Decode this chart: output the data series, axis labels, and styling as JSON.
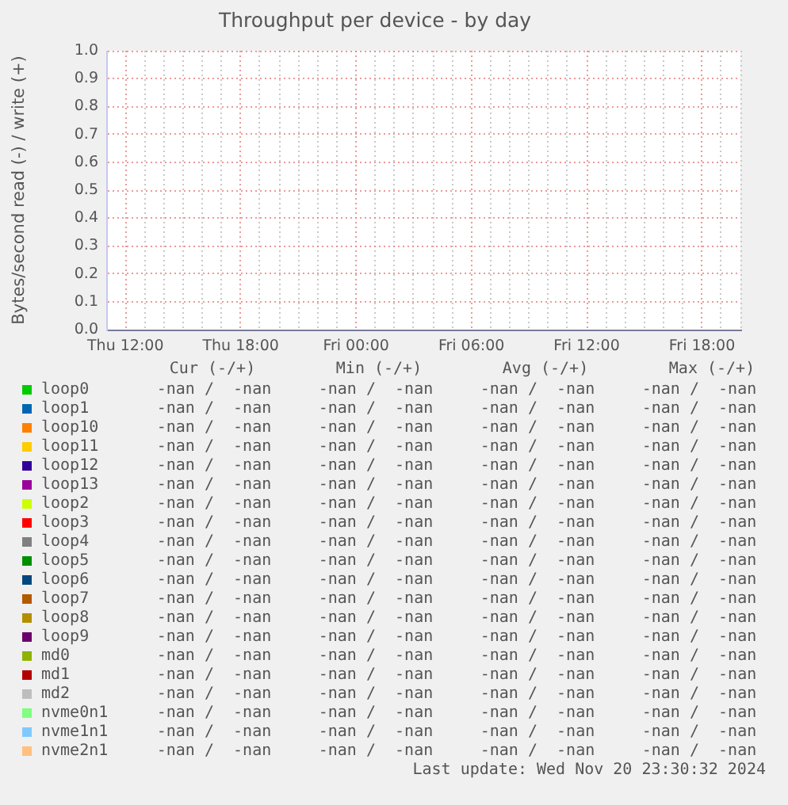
{
  "chart_data": {
    "type": "line",
    "title": "Throughput per device - by day",
    "ylabel": "Bytes/second read (-) / write (+)",
    "categories": [
      null,
      "Thu 12:00",
      null,
      null,
      null,
      null,
      null,
      "Thu 18:00",
      null,
      null,
      null,
      null,
      null,
      "Fri 00:00",
      null,
      null,
      null,
      null,
      null,
      "Fri 06:00",
      null,
      null,
      null,
      null,
      null,
      "Fri 12:00",
      null,
      null,
      null,
      null,
      null,
      "Fri 18:00",
      null,
      null
    ],
    "ylim": [
      0,
      1
    ],
    "yticks": [
      {
        "value": 0,
        "label": "0.0"
      },
      0.1,
      0.2,
      0.3,
      0.4,
      0.5,
      0.6,
      0.7,
      0.8,
      0.9,
      {
        "value": 1,
        "label": "1.0"
      }
    ],
    "grid": true,
    "legend": "bottom",
    "series": [
      {
        "name": "loop0",
        "color": "#00cc00",
        "values": [
          null,
          null,
          null,
          null,
          null,
          null,
          null,
          null,
          null,
          null,
          null,
          null,
          null,
          null,
          null,
          null,
          null,
          null,
          null,
          null,
          null,
          null,
          null,
          null,
          null,
          null,
          null,
          null,
          null,
          null,
          null,
          null,
          null,
          null
        ]
      },
      {
        "name": "loop1",
        "color": "#0066b3",
        "values": [
          null,
          null,
          null,
          null,
          null,
          null,
          null,
          null,
          null,
          null,
          null,
          null,
          null,
          null,
          null,
          null,
          null,
          null,
          null,
          null,
          null,
          null,
          null,
          null,
          null,
          null,
          null,
          null,
          null,
          null,
          null,
          null,
          null,
          null
        ]
      },
      {
        "name": "loop10",
        "color": "#ff8000",
        "values": [
          null,
          null,
          null,
          null,
          null,
          null,
          null,
          null,
          null,
          null,
          null,
          null,
          null,
          null,
          null,
          null,
          null,
          null,
          null,
          null,
          null,
          null,
          null,
          null,
          null,
          null,
          null,
          null,
          null,
          null,
          null,
          null,
          null,
          null
        ]
      },
      {
        "name": "loop11",
        "color": "#ffcc00",
        "values": [
          null,
          null,
          null,
          null,
          null,
          null,
          null,
          null,
          null,
          null,
          null,
          null,
          null,
          null,
          null,
          null,
          null,
          null,
          null,
          null,
          null,
          null,
          null,
          null,
          null,
          null,
          null,
          null,
          null,
          null,
          null,
          null,
          null,
          null
        ]
      },
      {
        "name": "loop12",
        "color": "#330099",
        "values": [
          null,
          null,
          null,
          null,
          null,
          null,
          null,
          null,
          null,
          null,
          null,
          null,
          null,
          null,
          null,
          null,
          null,
          null,
          null,
          null,
          null,
          null,
          null,
          null,
          null,
          null,
          null,
          null,
          null,
          null,
          null,
          null,
          null,
          null
        ]
      },
      {
        "name": "loop13",
        "color": "#990099",
        "values": [
          null,
          null,
          null,
          null,
          null,
          null,
          null,
          null,
          null,
          null,
          null,
          null,
          null,
          null,
          null,
          null,
          null,
          null,
          null,
          null,
          null,
          null,
          null,
          null,
          null,
          null,
          null,
          null,
          null,
          null,
          null,
          null,
          null,
          null
        ]
      },
      {
        "name": "loop2",
        "color": "#ccff00",
        "values": [
          null,
          null,
          null,
          null,
          null,
          null,
          null,
          null,
          null,
          null,
          null,
          null,
          null,
          null,
          null,
          null,
          null,
          null,
          null,
          null,
          null,
          null,
          null,
          null,
          null,
          null,
          null,
          null,
          null,
          null,
          null,
          null,
          null,
          null
        ]
      },
      {
        "name": "loop3",
        "color": "#ff0000",
        "values": [
          null,
          null,
          null,
          null,
          null,
          null,
          null,
          null,
          null,
          null,
          null,
          null,
          null,
          null,
          null,
          null,
          null,
          null,
          null,
          null,
          null,
          null,
          null,
          null,
          null,
          null,
          null,
          null,
          null,
          null,
          null,
          null,
          null,
          null
        ]
      },
      {
        "name": "loop4",
        "color": "#808080",
        "values": [
          null,
          null,
          null,
          null,
          null,
          null,
          null,
          null,
          null,
          null,
          null,
          null,
          null,
          null,
          null,
          null,
          null,
          null,
          null,
          null,
          null,
          null,
          null,
          null,
          null,
          null,
          null,
          null,
          null,
          null,
          null,
          null,
          null,
          null
        ]
      },
      {
        "name": "loop5",
        "color": "#008f00",
        "values": [
          null,
          null,
          null,
          null,
          null,
          null,
          null,
          null,
          null,
          null,
          null,
          null,
          null,
          null,
          null,
          null,
          null,
          null,
          null,
          null,
          null,
          null,
          null,
          null,
          null,
          null,
          null,
          null,
          null,
          null,
          null,
          null,
          null,
          null
        ]
      },
      {
        "name": "loop6",
        "color": "#00487d",
        "values": [
          null,
          null,
          null,
          null,
          null,
          null,
          null,
          null,
          null,
          null,
          null,
          null,
          null,
          null,
          null,
          null,
          null,
          null,
          null,
          null,
          null,
          null,
          null,
          null,
          null,
          null,
          null,
          null,
          null,
          null,
          null,
          null,
          null,
          null
        ]
      },
      {
        "name": "loop7",
        "color": "#b35a00",
        "values": [
          null,
          null,
          null,
          null,
          null,
          null,
          null,
          null,
          null,
          null,
          null,
          null,
          null,
          null,
          null,
          null,
          null,
          null,
          null,
          null,
          null,
          null,
          null,
          null,
          null,
          null,
          null,
          null,
          null,
          null,
          null,
          null,
          null,
          null
        ]
      },
      {
        "name": "loop8",
        "color": "#b38f00",
        "values": [
          null,
          null,
          null,
          null,
          null,
          null,
          null,
          null,
          null,
          null,
          null,
          null,
          null,
          null,
          null,
          null,
          null,
          null,
          null,
          null,
          null,
          null,
          null,
          null,
          null,
          null,
          null,
          null,
          null,
          null,
          null,
          null,
          null,
          null
        ]
      },
      {
        "name": "loop9",
        "color": "#6b006b",
        "values": [
          null,
          null,
          null,
          null,
          null,
          null,
          null,
          null,
          null,
          null,
          null,
          null,
          null,
          null,
          null,
          null,
          null,
          null,
          null,
          null,
          null,
          null,
          null,
          null,
          null,
          null,
          null,
          null,
          null,
          null,
          null,
          null,
          null,
          null
        ]
      },
      {
        "name": "md0",
        "color": "#8fb300",
        "values": [
          null,
          null,
          null,
          null,
          null,
          null,
          null,
          null,
          null,
          null,
          null,
          null,
          null,
          null,
          null,
          null,
          null,
          null,
          null,
          null,
          null,
          null,
          null,
          null,
          null,
          null,
          null,
          null,
          null,
          null,
          null,
          null,
          null,
          null
        ]
      },
      {
        "name": "md1",
        "color": "#b30000",
        "values": [
          null,
          null,
          null,
          null,
          null,
          null,
          null,
          null,
          null,
          null,
          null,
          null,
          null,
          null,
          null,
          null,
          null,
          null,
          null,
          null,
          null,
          null,
          null,
          null,
          null,
          null,
          null,
          null,
          null,
          null,
          null,
          null,
          null,
          null
        ]
      },
      {
        "name": "md2",
        "color": "#bebebe",
        "values": [
          null,
          null,
          null,
          null,
          null,
          null,
          null,
          null,
          null,
          null,
          null,
          null,
          null,
          null,
          null,
          null,
          null,
          null,
          null,
          null,
          null,
          null,
          null,
          null,
          null,
          null,
          null,
          null,
          null,
          null,
          null,
          null,
          null,
          null
        ]
      },
      {
        "name": "nvme0n1",
        "color": "#80ff80",
        "values": [
          null,
          null,
          null,
          null,
          null,
          null,
          null,
          null,
          null,
          null,
          null,
          null,
          null,
          null,
          null,
          null,
          null,
          null,
          null,
          null,
          null,
          null,
          null,
          null,
          null,
          null,
          null,
          null,
          null,
          null,
          null,
          null,
          null,
          null
        ]
      },
      {
        "name": "nvme1n1",
        "color": "#80c9ff",
        "values": [
          null,
          null,
          null,
          null,
          null,
          null,
          null,
          null,
          null,
          null,
          null,
          null,
          null,
          null,
          null,
          null,
          null,
          null,
          null,
          null,
          null,
          null,
          null,
          null,
          null,
          null,
          null,
          null,
          null,
          null,
          null,
          null,
          null,
          null
        ]
      },
      {
        "name": "nvme2n1",
        "color": "#ffc080",
        "values": [
          null,
          null,
          null,
          null,
          null,
          null,
          null,
          null,
          null,
          null,
          null,
          null,
          null,
          null,
          null,
          null,
          null,
          null,
          null,
          null,
          null,
          null,
          null,
          null,
          null,
          null,
          null,
          null,
          null,
          null,
          null,
          null,
          null,
          null
        ]
      }
    ],
    "annotations": [
      "Cur (-/+)",
      "Min (-/+)",
      "Avg (-/+)",
      "Max (-/+)",
      "-nan /  -nan",
      "-nan /  -nan",
      "-nan /  -nan",
      "-nan /  -nan",
      "-nan /  -nan",
      "-nan /  -nan",
      "-nan /  -nan",
      "-nan /  -nan",
      "-nan /  -nan",
      "-nan /  -nan",
      "-nan /  -nan",
      "-nan /  -nan",
      "-nan /  -nan",
      "-nan /  -nan",
      "-nan /  -nan",
      "-nan /  -nan",
      "-nan /  -nan",
      "-nan /  -nan",
      "-nan /  -nan",
      "-nan /  -nan",
      "-nan /  -nan",
      "-nan /  -nan",
      "-nan /  -nan",
      "-nan /  -nan",
      "-nan /  -nan",
      "-nan /  -nan",
      "-nan /  -nan",
      "-nan /  -nan",
      "-nan /  -nan",
      "-nan /  -nan",
      "-nan /  -nan",
      "-nan /  -nan",
      "-nan /  -nan",
      "-nan /  -nan",
      "-nan /  -nan",
      "-nan /  -nan",
      "-nan /  -nan",
      "-nan /  -nan",
      "-nan /  -nan",
      "-nan /  -nan",
      "-nan /  -nan",
      "-nan /  -nan",
      "-nan /  -nan",
      "-nan /  -nan",
      "-nan /  -nan",
      "-nan /  -nan",
      "-nan /  -nan",
      "-nan /  -nan",
      "-nan /  -nan",
      "-nan /  -nan",
      "-nan /  -nan",
      "-nan /  -nan",
      "-nan /  -nan",
      "-nan /  -nan",
      "-nan /  -nan",
      "-nan /  -nan",
      "-nan /  -nan",
      "-nan /  -nan",
      "-nan /  -nan",
      "-nan /  -nan",
      "-nan /  -nan",
      "-nan /  -nan",
      "-nan /  -nan",
      "-nan /  -nan",
      "-nan /  -nan",
      "-nan /  -nan",
      "-nan /  -nan",
      "-nan /  -nan",
      "-nan /  -nan",
      "-nan /  -nan",
      "-nan /  -nan",
      "-nan /  -nan",
      "-nan /  -nan",
      "-nan /  -nan",
      "-nan /  -nan",
      "-nan /  -nan",
      "-nan /  -nan",
      "-nan /  -nan",
      "-nan /  -nan",
      "-nan /  -nan",
      "Last update: Wed Nov 20 23:30:32 2024"
    ]
  }
}
